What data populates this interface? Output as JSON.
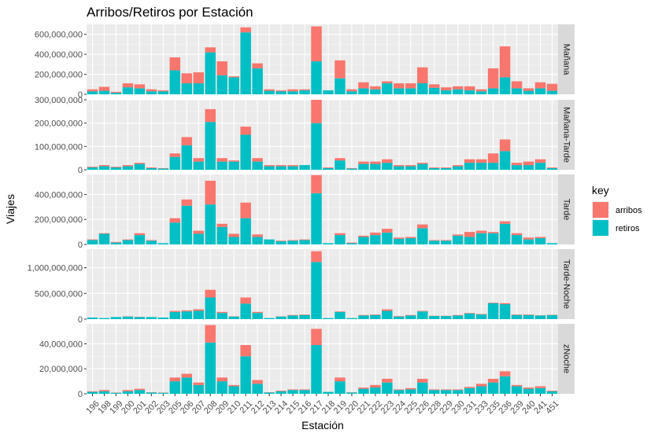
{
  "chart_data": {
    "type": "bar",
    "stacked": true,
    "title": "Arribos/Retiros por Estación",
    "xlabel": "Estación",
    "ylabel": "Viajes",
    "categories": [
      "196",
      "198",
      "199",
      "200",
      "201",
      "202",
      "203",
      "205",
      "206",
      "207",
      "208",
      "209",
      "210",
      "211",
      "212",
      "213",
      "214",
      "215",
      "216",
      "217",
      "218",
      "219",
      "220",
      "221",
      "222",
      "223",
      "224",
      "225",
      "226",
      "228",
      "229",
      "230",
      "231",
      "233",
      "235",
      "236",
      "239",
      "240",
      "241",
      "451"
    ],
    "legend": {
      "title": "key",
      "placement": "right",
      "entries": [
        {
          "label": "arribos",
          "color": "#F8766D"
        },
        {
          "label": "retiros",
          "color": "#00BFC4"
        }
      ]
    },
    "panels": [
      {
        "name": "Mañana",
        "ylim": [
          0,
          700000000
        ],
        "yticks": [
          0,
          200000000,
          400000000,
          600000000
        ],
        "ytick_labels": [
          "0",
          "200,000,000",
          "400,000,000",
          "600,000,000"
        ],
        "series": [
          {
            "name": "retiros",
            "values": [
              30000000,
              35000000,
              15000000,
              70000000,
              60000000,
              30000000,
              30000000,
              240000000,
              110000000,
              110000000,
              420000000,
              190000000,
              170000000,
              620000000,
              260000000,
              35000000,
              30000000,
              30000000,
              40000000,
              330000000,
              40000000,
              160000000,
              30000000,
              60000000,
              50000000,
              110000000,
              60000000,
              60000000,
              110000000,
              65000000,
              40000000,
              50000000,
              40000000,
              30000000,
              60000000,
              170000000,
              60000000,
              35000000,
              60000000,
              35000000
            ]
          },
          {
            "name": "arribos",
            "values": [
              20000000,
              40000000,
              10000000,
              40000000,
              40000000,
              20000000,
              10000000,
              130000000,
              100000000,
              110000000,
              50000000,
              140000000,
              10000000,
              50000000,
              50000000,
              15000000,
              10000000,
              20000000,
              10000000,
              350000000,
              0,
              180000000,
              20000000,
              60000000,
              30000000,
              20000000,
              50000000,
              50000000,
              160000000,
              35000000,
              30000000,
              30000000,
              40000000,
              20000000,
              200000000,
              310000000,
              70000000,
              25000000,
              60000000,
              70000000
            ]
          }
        ]
      },
      {
        "name": "Mañana-Tarde",
        "ylim": [
          0,
          300000000
        ],
        "yticks": [
          0,
          100000000,
          200000000,
          300000000
        ],
        "ytick_labels": [
          "0",
          "100,000,000",
          "200,000,000",
          "300,000,000"
        ],
        "series": [
          {
            "name": "retiros",
            "values": [
              10000000,
              15000000,
              10000000,
              15000000,
              25000000,
              7000000,
              5000000,
              55000000,
              105000000,
              35000000,
              205000000,
              35000000,
              35000000,
              150000000,
              35000000,
              15000000,
              15000000,
              15000000,
              20000000,
              200000000,
              7000000,
              40000000,
              5000000,
              25000000,
              25000000,
              30000000,
              15000000,
              15000000,
              25000000,
              7000000,
              7000000,
              15000000,
              30000000,
              30000000,
              30000000,
              80000000,
              20000000,
              20000000,
              30000000,
              7000000
            ]
          },
          {
            "name": "arribos",
            "values": [
              3000000,
              5000000,
              3000000,
              5000000,
              5000000,
              3000000,
              2000000,
              15000000,
              35000000,
              15000000,
              55000000,
              15000000,
              5000000,
              35000000,
              15000000,
              5000000,
              5000000,
              5000000,
              0,
              100000000,
              3000000,
              10000000,
              2000000,
              10000000,
              10000000,
              15000000,
              5000000,
              5000000,
              5000000,
              3000000,
              3000000,
              5000000,
              15000000,
              15000000,
              40000000,
              50000000,
              10000000,
              15000000,
              15000000,
              3000000
            ]
          }
        ]
      },
      {
        "name": "Tarde",
        "ylim": [
          0,
          560000000
        ],
        "yticks": [
          0,
          200000000,
          400000000
        ],
        "ytick_labels": [
          "0",
          "200,000,000",
          "400,000,000"
        ],
        "series": [
          {
            "name": "retiros",
            "values": [
              35000000,
              85000000,
              15000000,
              35000000,
              75000000,
              30000000,
              10000000,
              175000000,
              310000000,
              85000000,
              320000000,
              140000000,
              60000000,
              210000000,
              60000000,
              40000000,
              25000000,
              30000000,
              35000000,
              410000000,
              10000000,
              75000000,
              10000000,
              60000000,
              75000000,
              95000000,
              45000000,
              50000000,
              130000000,
              30000000,
              30000000,
              70000000,
              60000000,
              90000000,
              90000000,
              165000000,
              75000000,
              40000000,
              50000000,
              10000000
            ]
          },
          {
            "name": "arribos",
            "values": [
              5000000,
              5000000,
              5000000,
              5000000,
              15000000,
              5000000,
              0,
              35000000,
              50000000,
              25000000,
              190000000,
              25000000,
              25000000,
              125000000,
              20000000,
              0,
              5000000,
              5000000,
              5000000,
              145000000,
              0,
              15000000,
              5000000,
              10000000,
              20000000,
              30000000,
              10000000,
              10000000,
              30000000,
              5000000,
              5000000,
              10000000,
              40000000,
              20000000,
              10000000,
              20000000,
              15000000,
              15000000,
              10000000,
              0
            ]
          }
        ]
      },
      {
        "name": "Tarde-Noche",
        "ylim": [
          0,
          1360000000
        ],
        "yticks": [
          0,
          500000000,
          1000000000
        ],
        "ytick_labels": [
          "0",
          "500,000,000",
          "1,000,000,000"
        ],
        "series": [
          {
            "name": "retiros",
            "values": [
              30000000,
              20000000,
              40000000,
              50000000,
              40000000,
              40000000,
              30000000,
              140000000,
              150000000,
              160000000,
              420000000,
              120000000,
              50000000,
              300000000,
              120000000,
              20000000,
              50000000,
              70000000,
              80000000,
              1110000000,
              20000000,
              140000000,
              20000000,
              70000000,
              80000000,
              160000000,
              50000000,
              70000000,
              150000000,
              60000000,
              60000000,
              70000000,
              110000000,
              90000000,
              310000000,
              290000000,
              80000000,
              80000000,
              70000000,
              80000000
            ]
          },
          {
            "name": "arribos",
            "values": [
              0,
              0,
              0,
              5000000,
              5000000,
              0,
              0,
              20000000,
              20000000,
              30000000,
              150000000,
              20000000,
              5000000,
              120000000,
              20000000,
              0,
              5000000,
              10000000,
              10000000,
              210000000,
              0,
              10000000,
              0,
              10000000,
              10000000,
              30000000,
              10000000,
              10000000,
              10000000,
              5000000,
              5000000,
              10000000,
              10000000,
              10000000,
              10000000,
              20000000,
              10000000,
              10000000,
              5000000,
              5000000
            ]
          }
        ]
      },
      {
        "name": "zNoche",
        "ylim": [
          0,
          56000000
        ],
        "yticks": [
          0,
          20000000,
          40000000
        ],
        "ytick_labels": [
          "0",
          "20,000,000",
          "40,000,000"
        ],
        "series": [
          {
            "name": "retiros",
            "values": [
              1500000,
              2000000,
              800000,
              2000000,
              3000000,
              1000000,
              800000,
              10000000,
              13000000,
              7000000,
              41000000,
              10000000,
              6000000,
              30000000,
              8000000,
              1000000,
              2000000,
              3000000,
              3000000,
              39000000,
              1500000,
              10000000,
              1000000,
              4000000,
              5000000,
              9000000,
              3000000,
              3500000,
              9000000,
              3000000,
              3000000,
              3000000,
              4500000,
              6000000,
              9000000,
              14000000,
              6000000,
              4000000,
              4500000,
              2000000
            ]
          },
          {
            "name": "arribos",
            "values": [
              500000,
              1000000,
              200000,
              1000000,
              1000000,
              200000,
              200000,
              3000000,
              3000000,
              2000000,
              14000000,
              3000000,
              1000000,
              9000000,
              3000000,
              200000,
              500000,
              500000,
              500000,
              13000000,
              0,
              3000000,
              200000,
              1000000,
              2000000,
              3000000,
              500000,
              1000000,
              3000000,
              500000,
              500000,
              500000,
              1000000,
              2000000,
              3000000,
              4000000,
              1000000,
              1000000,
              1500000,
              500000
            ]
          }
        ]
      }
    ]
  }
}
